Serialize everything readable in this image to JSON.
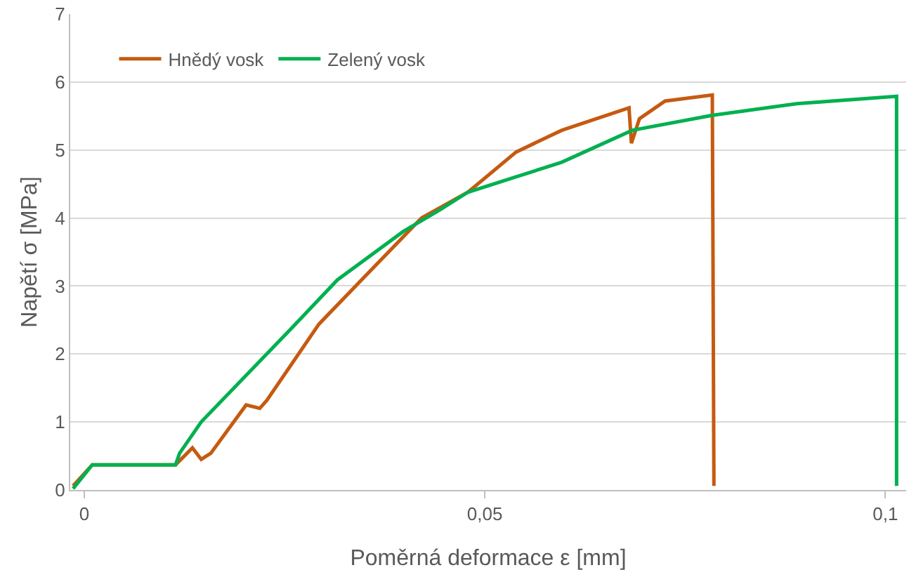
{
  "chart_data": {
    "type": "line",
    "xlabel": "Poměrná deformace ε [mm]",
    "ylabel": "Napětí σ [MPa]",
    "xlim": [
      -0.00175,
      0.1026
    ],
    "xticks": [
      {
        "value": 0,
        "label": "0"
      },
      {
        "value": 0.05,
        "label": "0,05"
      },
      {
        "value": 0.1,
        "label": "0,1"
      }
    ],
    "ylim": [
      0,
      7
    ],
    "yticks": [
      0,
      1,
      2,
      3,
      4,
      5,
      6,
      7
    ],
    "grid": "y",
    "legend": "top left",
    "marker": "none",
    "line_style": "solid",
    "series": [
      {
        "name": "Hnědý vosk",
        "color": "#c55a11",
        "x": [
          -0.0014,
          0.001,
          0.0114,
          0.0135,
          0.0146,
          0.0158,
          0.0202,
          0.0219,
          0.0228,
          0.0293,
          0.0351,
          0.0421,
          0.0479,
          0.0539,
          0.0596,
          0.068,
          0.0683,
          0.0693,
          0.0725,
          0.0784,
          0.0786
        ],
        "values": [
          0.06,
          0.37,
          0.37,
          0.62,
          0.45,
          0.54,
          1.25,
          1.2,
          1.32,
          2.44,
          3.15,
          4.0,
          4.38,
          4.97,
          5.29,
          5.62,
          5.1,
          5.46,
          5.72,
          5.81,
          0.06
        ]
      },
      {
        "name": "Zelený vosk",
        "color": "#00b050",
        "x": [
          -0.0014,
          0.001,
          0.0114,
          0.0119,
          0.0146,
          0.0258,
          0.0316,
          0.0398,
          0.0444,
          0.0479,
          0.0596,
          0.0684,
          0.0784,
          0.0889,
          0.1014,
          0.1014
        ],
        "values": [
          0.02,
          0.37,
          0.37,
          0.54,
          1.0,
          2.37,
          3.09,
          3.8,
          4.12,
          4.38,
          4.82,
          5.29,
          5.51,
          5.68,
          5.79,
          0.06
        ]
      }
    ]
  }
}
